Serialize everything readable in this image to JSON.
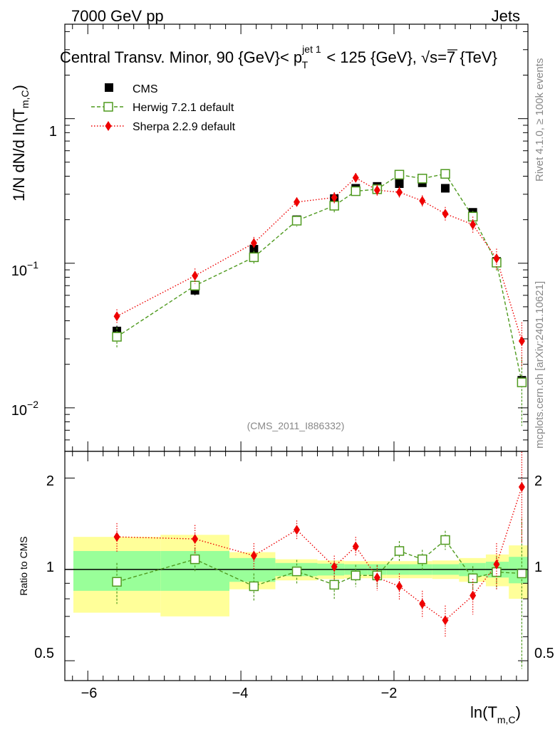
{
  "header": {
    "left": "7000 GeV pp",
    "right": "Jets",
    "title_prefix": "Central Transv. Minor, 90 {GeV}< p",
    "title_sup": "jet 1",
    "title_sub": "T",
    "title_mid": " < 125 {GeV}, ",
    "title_sqrt": "√",
    "title_s": "s",
    "title_suffix": "=7 {TeV}"
  },
  "side_labels": {
    "rivet": "Rivet 4.1.0, ≥ 100k events",
    "mcplots": "mcplots.cern.ch [arXiv:2401.10621]"
  },
  "watermark": "(CMS_2011_I886332)",
  "ylabel_main": {
    "prefix": "1/N    dN/d ln(T",
    "sub": "m,C",
    "suffix": ")"
  },
  "ylabel_ratio": "Ratio to CMS",
  "xlabel": {
    "prefix": "ln(T",
    "sub": "m,C",
    "suffix": ")"
  },
  "legend": [
    {
      "name": "CMS",
      "color": "#000000",
      "marker": "filled-square"
    },
    {
      "name": "Herwig 7.2.1 default",
      "color": "#4f9a1f",
      "marker": "open-square"
    },
    {
      "name": "Sherpa 2.2.9 default",
      "color": "#ee0000",
      "marker": "diamond"
    }
  ],
  "main_ticks": {
    "one": "1",
    "tenth_base": "10",
    "tenth_exp": "−1",
    "hundredth_base": "10",
    "hundredth_exp": "−2"
  },
  "ratio_ticks": [
    "2",
    "1",
    "0.5"
  ],
  "x_ticks": [
    "−6",
    "−4",
    "−2"
  ],
  "chart_data": {
    "type": "scatter",
    "title": "Central Transv. Minor, 90 GeV < pT(jet 1) < 125 GeV, √s=7 TeV",
    "xlabel": "ln(T_m,C)",
    "ylabel": "1/N dN/d ln(T_m,C)",
    "yscale": "log",
    "xlim": [
      -6.3,
      -0.25
    ],
    "ylim": [
      0.005,
      4.5
    ],
    "ratio_ylim": [
      0.43,
      2.45
    ],
    "x_bins": [
      [
        -6.3,
        -5.05
      ],
      [
        -5.05,
        -4.15
      ],
      [
        -4.15,
        -3.55
      ],
      [
        -3.55,
        -3.0
      ],
      [
        -3.0,
        -2.65
      ],
      [
        -2.65,
        -2.35
      ],
      [
        -2.35,
        -2.1
      ],
      [
        -2.1,
        -1.8
      ],
      [
        -1.8,
        -1.5
      ],
      [
        -1.5,
        -1.15
      ],
      [
        -1.15,
        -0.8
      ],
      [
        -0.8,
        -0.5
      ],
      [
        -0.5,
        -0.25
      ]
    ],
    "x": [
      -5.62,
      -4.6,
      -3.83,
      -3.27,
      -2.78,
      -2.5,
      -2.22,
      -1.93,
      -1.63,
      -1.33,
      -0.97,
      -0.66,
      -0.33
    ],
    "series": [
      {
        "name": "CMS",
        "values": [
          0.034,
          0.065,
          0.125,
          0.2,
          0.28,
          0.33,
          0.34,
          0.355,
          0.36,
          0.33,
          0.225,
          0.103,
          0.0155
        ],
        "errors": [
          0.003,
          0.005,
          0.008,
          0.01,
          0.012,
          0.013,
          0.013,
          0.013,
          0.013,
          0.012,
          0.01,
          0.006,
          0.0015
        ]
      },
      {
        "name": "Herwig 7.2.1 default",
        "values": [
          0.031,
          0.07,
          0.11,
          0.197,
          0.25,
          0.315,
          0.325,
          0.41,
          0.385,
          0.415,
          0.21,
          0.101,
          0.015
        ],
        "errors": [
          0.005,
          0.006,
          0.012,
          0.018,
          0.025,
          0.025,
          0.025,
          0.03,
          0.03,
          0.03,
          0.02,
          0.012,
          0.0075
        ]
      },
      {
        "name": "Sherpa 2.2.9 default",
        "values": [
          0.043,
          0.082,
          0.138,
          0.265,
          0.285,
          0.39,
          0.32,
          0.31,
          0.27,
          0.22,
          0.185,
          0.108,
          0.029
        ],
        "errors": [
          0.005,
          0.01,
          0.014,
          0.02,
          0.025,
          0.03,
          0.03,
          0.03,
          0.025,
          0.025,
          0.025,
          0.018,
          0.01
        ]
      }
    ],
    "ratio": {
      "ylabel": "Ratio to CMS",
      "herwig": [
        0.91,
        1.08,
        0.88,
        0.985,
        0.89,
        0.955,
        0.955,
        1.15,
        1.08,
        1.25,
        0.935,
        0.98,
        0.97
      ],
      "herwig_errors": [
        0.14,
        0.1,
        0.09,
        0.09,
        0.09,
        0.08,
        0.08,
        0.09,
        0.08,
        0.09,
        0.09,
        0.12,
        0.5
      ],
      "sherpa": [
        1.28,
        1.26,
        1.11,
        1.35,
        1.02,
        1.19,
        0.94,
        0.88,
        0.77,
        0.68,
        0.82,
        1.04,
        1.87
      ],
      "sherpa_errors": [
        0.14,
        0.14,
        0.11,
        0.1,
        0.09,
        0.09,
        0.09,
        0.09,
        0.08,
        0.08,
        0.11,
        0.18,
        0.65
      ],
      "band_inner": [
        0.15,
        0.15,
        0.09,
        0.05,
        0.045,
        0.04,
        0.04,
        0.04,
        0.04,
        0.04,
        0.05,
        0.06,
        0.1
      ],
      "band_outer": [
        0.28,
        0.3,
        0.14,
        0.08,
        0.07,
        0.065,
        0.065,
        0.065,
        0.065,
        0.07,
        0.09,
        0.12,
        0.2
      ]
    }
  }
}
